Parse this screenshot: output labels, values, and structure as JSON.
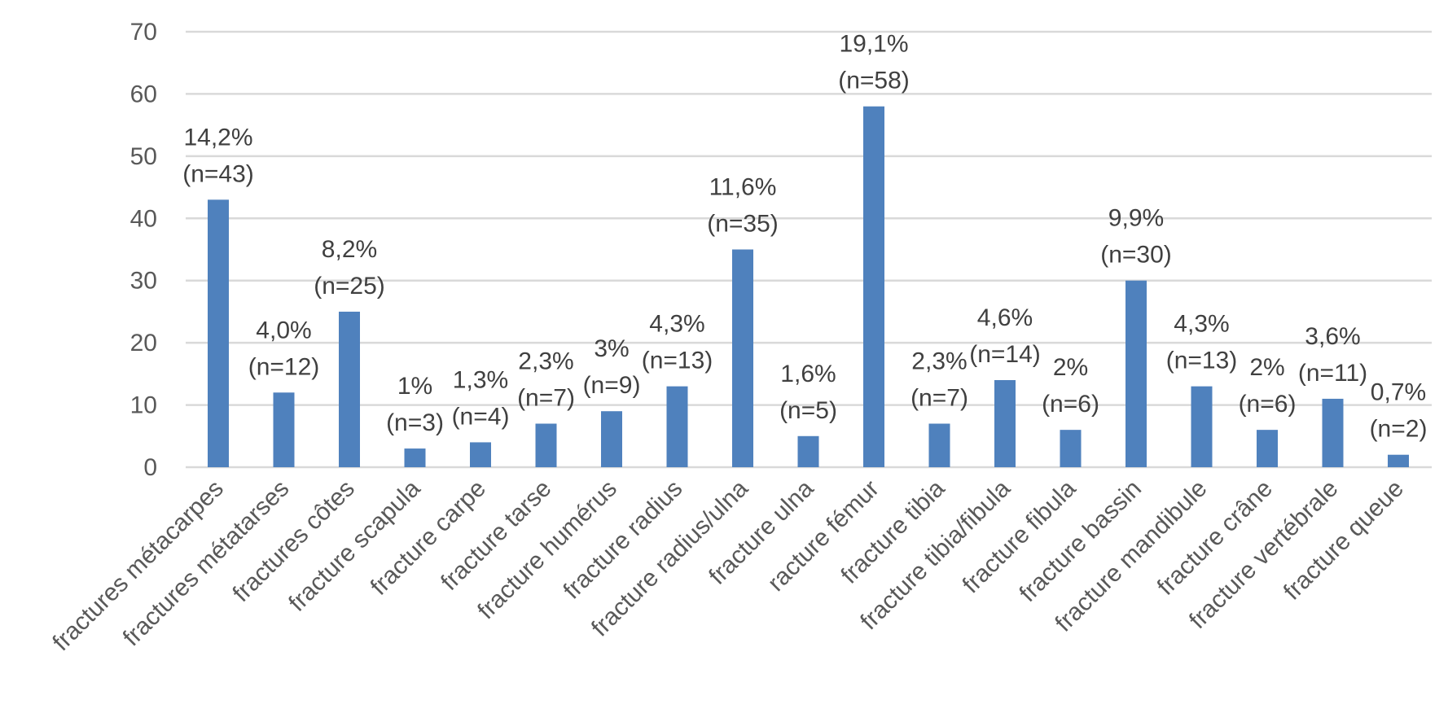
{
  "chart_data": {
    "type": "bar",
    "title": "",
    "xlabel": "",
    "ylabel": "",
    "ylim": [
      0,
      70
    ],
    "yticks": [
      0,
      10,
      20,
      30,
      40,
      50,
      60,
      70
    ],
    "grid": true,
    "legend": "none",
    "bar_color": "#4f81bd",
    "categories": [
      "fractures métacarpes",
      "fractures métatarses",
      "fractures côtes",
      "fracture scapula",
      "fracture carpe",
      "fracture tarse",
      "fracture humérus",
      "fracture radius",
      "fracture radius/ulna",
      "fracture ulna",
      "racture fémur",
      "fracture tibia",
      "fracture tibia/fibula",
      "fracture fibula",
      "fracture bassin",
      "fracture mandibule",
      "fracture crâne",
      "fracture vertébrale",
      "fracture queue"
    ],
    "values": [
      43,
      12,
      25,
      3,
      4,
      7,
      9,
      13,
      35,
      5,
      58,
      7,
      14,
      6,
      30,
      13,
      6,
      11,
      2
    ],
    "data_labels": [
      [
        "14,2%",
        "(n=43)"
      ],
      [
        "4,0%",
        "(n=12)"
      ],
      [
        "8,2%",
        "(n=25)"
      ],
      [
        "1%",
        "(n=3)"
      ],
      [
        "1,3%",
        "(n=4)"
      ],
      [
        "2,3%",
        "(n=7)"
      ],
      [
        "3%",
        "(n=9)"
      ],
      [
        "4,3%",
        "(n=13)"
      ],
      [
        "11,6%",
        "(n=35)"
      ],
      [
        "1,6%",
        "(n=5)"
      ],
      [
        "19,1%",
        "(n=58)"
      ],
      [
        "2,3%",
        "(n=7)"
      ],
      [
        "4,6%",
        "(n=14)"
      ],
      [
        "2%",
        "(n=6)"
      ],
      [
        "9,9%",
        "(n=30)"
      ],
      [
        "4,3%",
        "(n=13)"
      ],
      [
        "2%",
        "(n=6)"
      ],
      [
        "3,6%",
        "(n=11)"
      ],
      [
        "0,7%",
        "(n=2)"
      ]
    ]
  }
}
